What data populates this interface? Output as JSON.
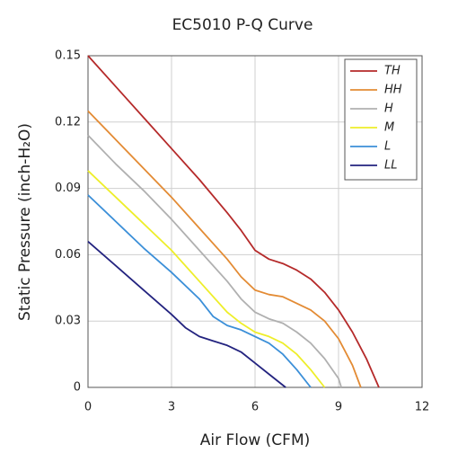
{
  "chart_data": {
    "type": "line",
    "title": "EC5010 P-Q Curve",
    "x_label": "Air Flow (CFM)",
    "y_label": "Static Pressure (inch-H₂O)",
    "xlim": [
      0,
      12
    ],
    "xticks": [
      0,
      3,
      6,
      9,
      12
    ],
    "ylim": [
      0,
      0.15
    ],
    "yticks": [
      0,
      0.03,
      0.06,
      0.09,
      0.12,
      0.15
    ],
    "grid": true,
    "legend": "top-right",
    "series": [
      {
        "name": "TH",
        "color": "#b52a2a",
        "x": [
          0,
          1,
          2,
          3,
          4,
          5,
          5.5,
          6,
          6.5,
          7,
          7.5,
          8,
          8.5,
          9,
          9.5,
          10,
          10.45
        ],
        "values": [
          0.15,
          0.136,
          0.122,
          0.108,
          0.094,
          0.079,
          0.071,
          0.062,
          0.058,
          0.056,
          0.053,
          0.049,
          0.043,
          0.035,
          0.025,
          0.013,
          0
        ]
      },
      {
        "name": "HH",
        "color": "#e38b34",
        "x": [
          0,
          1,
          2,
          3,
          4,
          5,
          5.5,
          6,
          6.5,
          7,
          7.5,
          8,
          8.5,
          9,
          9.5,
          9.8
        ],
        "values": [
          0.125,
          0.112,
          0.099,
          0.086,
          0.072,
          0.058,
          0.05,
          0.044,
          0.042,
          0.041,
          0.038,
          0.035,
          0.03,
          0.022,
          0.01,
          0
        ]
      },
      {
        "name": "H",
        "color": "#b0b0b0",
        "x": [
          0,
          1,
          2,
          3,
          4,
          5,
          5.5,
          6,
          6.5,
          7,
          7.5,
          8,
          8.5,
          9,
          9.1
        ],
        "values": [
          0.114,
          0.101,
          0.089,
          0.076,
          0.062,
          0.048,
          0.04,
          0.034,
          0.031,
          0.029,
          0.025,
          0.02,
          0.013,
          0.004,
          0
        ]
      },
      {
        "name": "M",
        "color": "#eeee2a",
        "x": [
          0,
          1,
          2,
          3,
          4,
          5,
          5.5,
          6,
          6.5,
          7,
          7.5,
          8,
          8.5
        ],
        "values": [
          0.098,
          0.086,
          0.074,
          0.062,
          0.048,
          0.034,
          0.029,
          0.025,
          0.023,
          0.02,
          0.015,
          0.008,
          0
        ]
      },
      {
        "name": "L",
        "color": "#3b8fd8",
        "x": [
          0,
          1,
          2,
          3,
          4,
          4.5,
          5,
          5.5,
          6,
          6.5,
          7,
          7.5,
          8
        ],
        "values": [
          0.087,
          0.075,
          0.063,
          0.052,
          0.04,
          0.032,
          0.028,
          0.026,
          0.023,
          0.02,
          0.015,
          0.008,
          0
        ]
      },
      {
        "name": "LL",
        "color": "#23237f",
        "x": [
          0,
          1,
          2,
          3,
          3.5,
          4,
          4.5,
          5,
          5.5,
          6,
          6.5,
          7.1
        ],
        "values": [
          0.066,
          0.055,
          0.044,
          0.033,
          0.027,
          0.023,
          0.021,
          0.019,
          0.016,
          0.011,
          0.006,
          0
        ]
      }
    ]
  }
}
